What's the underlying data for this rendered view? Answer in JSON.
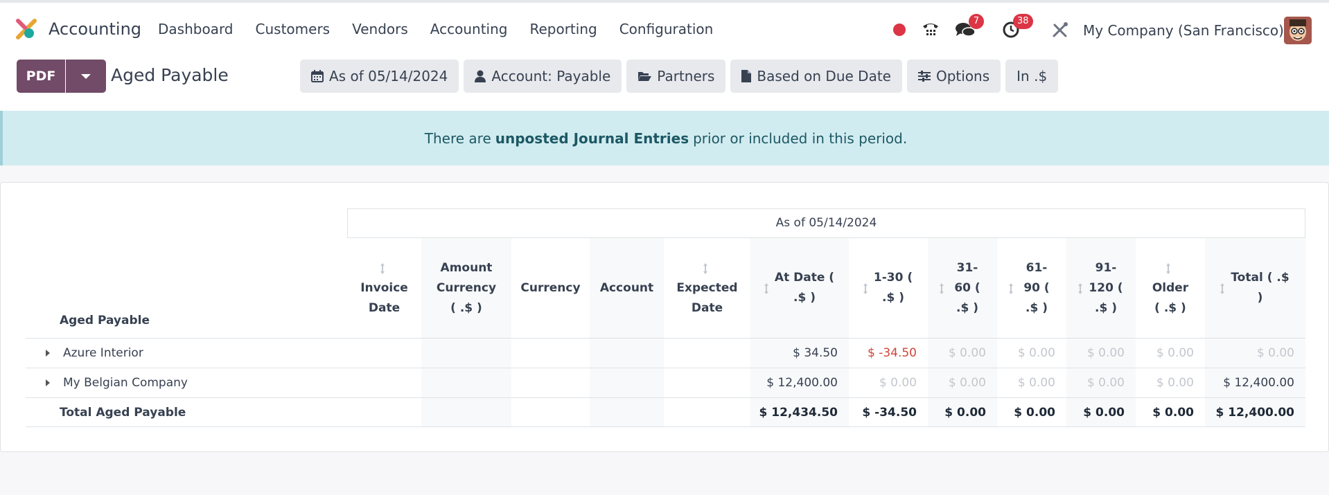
{
  "navbar": {
    "app_name": "Accounting",
    "menu": [
      "Dashboard",
      "Customers",
      "Vendors",
      "Accounting",
      "Reporting",
      "Configuration"
    ],
    "messages_badge": "7",
    "activities_badge": "38",
    "company": "My Company (San Francisco)"
  },
  "control": {
    "pdf_label": "PDF",
    "title": "Aged Payable",
    "filters": {
      "date": "As of 05/14/2024",
      "account": "Account: Payable",
      "partners": "Partners",
      "based_on": "Based on Due Date",
      "options": "Options",
      "currency": "In .$"
    }
  },
  "alert": {
    "pre": "There are",
    "link": "unposted Journal Entries",
    "post": "prior or included in this period."
  },
  "report": {
    "period_header": "As of 05/14/2024",
    "section_label": "Aged Payable",
    "columns": [
      "Invoice Date",
      "Amount Currency ( .$ )",
      "Currency",
      "Account",
      "Expected Date",
      "At Date ( .$ )",
      "1-30 ( .$ )",
      "31-60 ( .$ )",
      "61-90 ( .$ )",
      "91-120 ( .$ )",
      "Older ( .$ )",
      "Total ( .$ )"
    ],
    "rows": [
      {
        "name": "Azure Interior",
        "at_date": "$ 34.50",
        "d1_30": "$ -34.50",
        "d31_60": "$ 0.00",
        "d61_90": "$ 0.00",
        "d91_120": "$ 0.00",
        "older": "$ 0.00",
        "total": "$ 0.00"
      },
      {
        "name": "My Belgian Company",
        "at_date": "$ 12,400.00",
        "d1_30": "$ 0.00",
        "d31_60": "$ 0.00",
        "d61_90": "$ 0.00",
        "d91_120": "$ 0.00",
        "older": "$ 0.00",
        "total": "$ 12,400.00"
      }
    ],
    "total_row": {
      "name": "Total Aged Payable",
      "at_date": "$ 12,434.50",
      "d1_30": "$ -34.50",
      "d31_60": "$ 0.00",
      "d61_90": "$ 0.00",
      "d91_120": "$ 0.00",
      "older": "$ 0.00",
      "total": "$ 12,400.00"
    }
  },
  "colors": {
    "brand": "#714b67",
    "alert_bg": "#d1ecf0",
    "negative": "#d04437",
    "badge": "#dc3545"
  }
}
